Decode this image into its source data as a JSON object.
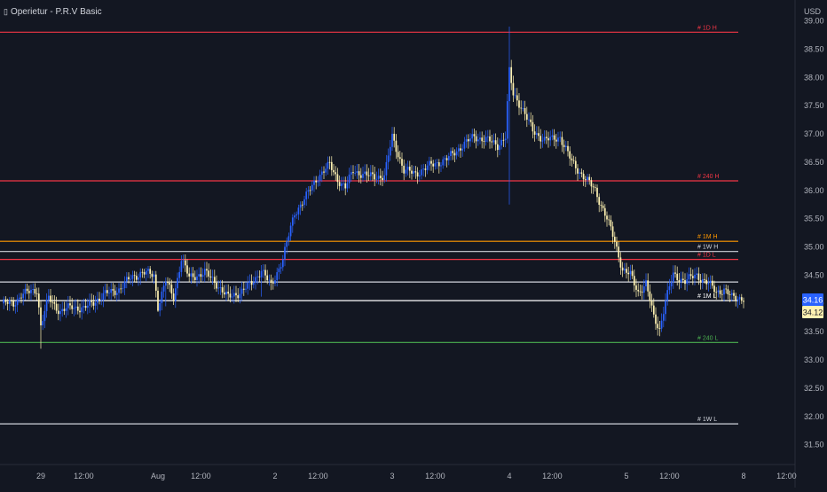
{
  "header": {
    "indicator_icon": "▯",
    "indicator_title": "Operietur - P.R.V Basic",
    "currency": "USD"
  },
  "chart_data": {
    "type": "candlestick",
    "y_axis": {
      "range": [
        31.15,
        39.15
      ],
      "ticks": [
        31.5,
        32.0,
        32.5,
        33.0,
        33.5,
        34.0,
        34.5,
        35.0,
        35.5,
        36.0,
        36.5,
        37.0,
        37.5,
        38.0,
        38.5,
        39.0
      ],
      "tick_labels": [
        "31.50",
        "32.00",
        "32.50",
        "33.00",
        "33.50",
        "34.00",
        "34.50",
        "35.00",
        "35.50",
        "36.00",
        "36.50",
        "37.00",
        "37.50",
        "38.00",
        "38.50",
        "39.00"
      ]
    },
    "x_axis": {
      "tick_labels": [
        "29",
        "12:00",
        "Aug",
        "12:00",
        "2",
        "12:00",
        "3",
        "12:00",
        "4",
        "12:00",
        "5",
        "12:00",
        "8",
        "12:00"
      ],
      "tick_bars": [
        20,
        42,
        80,
        102,
        140,
        162,
        200,
        222,
        260,
        282,
        320,
        342,
        380,
        402
      ]
    },
    "price_labels": [
      {
        "value": "34.16",
        "bg": "#2962ff",
        "fg": "#ffffff",
        "price": 34.16
      },
      {
        "value": "34.12",
        "bg": "#fff2b2",
        "fg": "#131722",
        "price": 34.12
      }
    ],
    "levels": [
      {
        "label": "# 1D H",
        "price": 38.8,
        "color": "#f23645"
      },
      {
        "label": "# 240 H",
        "price": 36.17,
        "color": "#f23645"
      },
      {
        "label": "# 1M H",
        "price": 35.1,
        "color": "#ff9800"
      },
      {
        "label": "# 1W H",
        "price": 34.92,
        "color": "#d1d4dc"
      },
      {
        "label": "# 1D L",
        "price": 34.78,
        "color": "#f23645"
      },
      {
        "label": "",
        "price": 34.38,
        "color": "#d1d4dc"
      },
      {
        "label": "# 1M L",
        "price": 34.05,
        "color": "#ffffff"
      },
      {
        "label": "# 240 L",
        "price": 33.31,
        "color": "#4caf50"
      },
      {
        "label": "# 1W L",
        "price": 31.87,
        "color": "#d1d4dc"
      }
    ],
    "colors": {
      "up": "#2962ff",
      "down": "#fff2b2",
      "background": "#131722",
      "text": "#b2b5be"
    },
    "anchors": [
      [
        0,
        34.0
      ],
      [
        6,
        34.0
      ],
      [
        10,
        34.15
      ],
      [
        18,
        34.25
      ],
      [
        20,
        33.6
      ],
      [
        24,
        34.1
      ],
      [
        30,
        33.85
      ],
      [
        36,
        33.95
      ],
      [
        42,
        33.9
      ],
      [
        52,
        34.15
      ],
      [
        60,
        34.25
      ],
      [
        66,
        34.45
      ],
      [
        72,
        34.55
      ],
      [
        78,
        34.5
      ],
      [
        80,
        33.95
      ],
      [
        84,
        34.4
      ],
      [
        88,
        34.1
      ],
      [
        92,
        34.8
      ],
      [
        96,
        34.45
      ],
      [
        104,
        34.55
      ],
      [
        110,
        34.35
      ],
      [
        116,
        34.1
      ],
      [
        122,
        34.2
      ],
      [
        128,
        34.35
      ],
      [
        133,
        34.6
      ],
      [
        138,
        34.3
      ],
      [
        144,
        34.8
      ],
      [
        150,
        35.6
      ],
      [
        156,
        35.9
      ],
      [
        162,
        36.25
      ],
      [
        168,
        36.45
      ],
      [
        172,
        36.2
      ],
      [
        176,
        36.05
      ],
      [
        180,
        36.35
      ],
      [
        188,
        36.25
      ],
      [
        196,
        36.25
      ],
      [
        200,
        36.95
      ],
      [
        206,
        36.35
      ],
      [
        212,
        36.3
      ],
      [
        220,
        36.45
      ],
      [
        228,
        36.55
      ],
      [
        236,
        36.8
      ],
      [
        242,
        36.95
      ],
      [
        248,
        36.9
      ],
      [
        254,
        36.8
      ],
      [
        258,
        36.95
      ],
      [
        260,
        38.1
      ],
      [
        262,
        37.7
      ],
      [
        266,
        37.5
      ],
      [
        272,
        37.05
      ],
      [
        278,
        36.9
      ],
      [
        282,
        36.9
      ],
      [
        286,
        36.95
      ],
      [
        292,
        36.5
      ],
      [
        298,
        36.25
      ],
      [
        304,
        36.0
      ],
      [
        310,
        35.5
      ],
      [
        314,
        35.1
      ],
      [
        318,
        34.6
      ],
      [
        322,
        34.5
      ],
      [
        326,
        34.2
      ],
      [
        330,
        34.35
      ],
      [
        334,
        33.75
      ],
      [
        337,
        33.55
      ],
      [
        340,
        34.05
      ],
      [
        344,
        34.5
      ],
      [
        350,
        34.4
      ],
      [
        356,
        34.5
      ],
      [
        362,
        34.35
      ],
      [
        366,
        34.2
      ],
      [
        370,
        34.25
      ],
      [
        374,
        34.1
      ],
      [
        380,
        34.1
      ]
    ]
  }
}
